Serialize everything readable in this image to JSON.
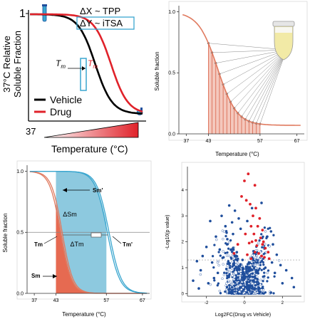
{
  "chart_data": [
    {
      "type": "line",
      "id": "schematic",
      "ylabel": [
        "37°C Relative",
        "Soluble Fraction"
      ],
      "xlabel": "Temperature (°C)",
      "x_start_tick": "37",
      "y_top_tick": "1",
      "annotation_dx": "ΔX ~ TPP",
      "annotation_dy": "ΔY ~ iTSA",
      "tm_label": "T",
      "tm_sub": "m",
      "series": [
        {
          "name": "Vehicle",
          "color": "#000000",
          "tm": 0.58
        },
        {
          "name": "Drug",
          "color": "#e0222a",
          "tm": 0.72
        }
      ]
    },
    {
      "type": "line",
      "id": "tpp",
      "ylabel": "Soluble fraction",
      "xlabel": "Temperature (°C)",
      "xticks": [
        "37",
        "43",
        "57",
        "67"
      ],
      "xtick_values": [
        37,
        43,
        57,
        67
      ],
      "yticks": [
        "0.0",
        "0.5",
        "1.0"
      ],
      "ytick_values": [
        0,
        0.5,
        1.0
      ],
      "xlim": [
        35,
        69
      ],
      "ylim": [
        0,
        1.05
      ],
      "curve": {
        "tm": 45.5,
        "slope": 1.3,
        "floor": 0.07,
        "color": "#e07a5f"
      },
      "sample_temperatures": [
        43,
        44,
        45,
        46,
        47,
        48,
        49,
        50,
        51,
        52,
        53,
        54,
        55,
        56,
        57
      ],
      "shade_range": [
        43,
        57
      ]
    },
    {
      "type": "line",
      "id": "melt-shift",
      "ylabel": "Soluble fraction",
      "xlabel": "Temperature (°C)",
      "xticks": [
        "37",
        "43",
        "57",
        "67"
      ],
      "xtick_values": [
        37,
        43,
        57,
        67
      ],
      "yticks": [
        "0.0",
        "0.5",
        "1.0"
      ],
      "ytick_values": [
        0,
        0.5,
        1.0
      ],
      "xlim": [
        35,
        69
      ],
      "ylim": [
        0,
        1.05
      ],
      "shade_range": [
        43,
        57
      ],
      "curves": [
        {
          "name": "Sm",
          "tm": 44.5,
          "slope": 1.5,
          "color": "#e07a5f"
        },
        {
          "name": "Sm'",
          "tm": 57.5,
          "slope": 1.7,
          "color": "#3aa6cf"
        }
      ],
      "labels": {
        "sm": "Sm",
        "sm_prime": "Sm'",
        "delta_sm": "ΔSm",
        "delta_tm": "ΔTm",
        "tm": "Tm",
        "tm_prime": "Tm'"
      }
    },
    {
      "type": "scatter",
      "id": "volcano",
      "xlabel": "Log2FC(Drug vs Vehicle)",
      "ylabel": "-Log10(p value)",
      "xticks": [
        "-2",
        "0",
        "2"
      ],
      "xtick_values": [
        -2,
        0,
        2
      ],
      "yticks": [
        "0",
        "1",
        "2",
        "3",
        "4"
      ],
      "ytick_values": [
        0,
        1,
        2,
        3,
        4
      ],
      "xlim": [
        -3.0,
        3.0
      ],
      "ylim": [
        -0.1,
        4.9
      ],
      "threshold_y": 1.3,
      "colors": {
        "ns": "#1f4e9c",
        "sig": "#e0222a"
      },
      "significant_points": [
        [
          0.2,
          4.62
        ],
        [
          0.0,
          4.35
        ],
        [
          0.55,
          4.18
        ],
        [
          -0.15,
          3.75
        ],
        [
          0.1,
          3.6
        ],
        [
          0.3,
          3.45
        ],
        [
          0.6,
          3.3
        ],
        [
          0.45,
          3.0
        ],
        [
          0.8,
          2.9
        ],
        [
          0.7,
          2.6
        ],
        [
          0.95,
          2.45
        ],
        [
          0.35,
          2.6
        ],
        [
          0.5,
          2.3
        ],
        [
          0.85,
          2.15
        ],
        [
          1.0,
          2.0
        ],
        [
          0.4,
          2.0
        ],
        [
          0.65,
          1.85
        ],
        [
          1.1,
          1.75
        ],
        [
          0.75,
          1.55
        ],
        [
          0.55,
          1.6
        ],
        [
          0.25,
          1.95
        ],
        [
          -0.35,
          1.9
        ],
        [
          1.25,
          1.6
        ],
        [
          0.9,
          1.45
        ],
        [
          0.15,
          1.5
        ],
        [
          -0.55,
          1.55
        ],
        [
          1.05,
          1.4
        ],
        [
          0.35,
          1.35
        ],
        [
          0.95,
          1.9
        ],
        [
          0.05,
          2.3
        ],
        [
          1.3,
          1.35
        ],
        [
          0.6,
          2.05
        ]
      ],
      "ns_points": [
        [
          -1.2,
          3.0
        ],
        [
          -1.0,
          2.6
        ],
        [
          -1.8,
          2.8
        ],
        [
          -2.5,
          1.25
        ],
        [
          -1.5,
          2.2
        ],
        [
          -0.8,
          3.4
        ],
        [
          -0.5,
          3.2
        ],
        [
          0.9,
          3.5
        ],
        [
          -0.3,
          2.9
        ],
        [
          0.4,
          3.3
        ],
        [
          -0.9,
          2.1
        ],
        [
          1.4,
          2.4
        ],
        [
          -1.3,
          1.7
        ],
        [
          1.7,
          1.5
        ],
        [
          -2.0,
          1.8
        ],
        [
          -2.3,
          0.9
        ],
        [
          2.2,
          0.9
        ],
        [
          -1.7,
          1.2
        ],
        [
          1.9,
          1.1
        ],
        [
          -0.2,
          2.5
        ],
        [
          0.15,
          2.8
        ],
        [
          -0.6,
          2.3
        ],
        [
          1.2,
          2.2
        ],
        [
          -1.1,
          1.4
        ],
        [
          2.5,
          0.6
        ],
        [
          -2.7,
          0.5
        ],
        [
          -1.6,
          0.6
        ],
        [
          1.6,
          0.8
        ],
        [
          -0.7,
          1.7
        ],
        [
          1.5,
          1.9
        ],
        [
          -0.4,
          1.6
        ],
        [
          0.7,
          1.2
        ],
        [
          -0.1,
          1.3
        ],
        [
          -1.9,
          0.4
        ],
        [
          2.0,
          0.4
        ],
        [
          1.1,
          1.0
        ],
        [
          -0.95,
          0.95
        ],
        [
          0.3,
          0.9
        ],
        [
          -0.3,
          1.05
        ],
        [
          -1.4,
          0.8
        ],
        [
          2.6,
          0.25
        ],
        [
          -2.4,
          0.2
        ],
        [
          -2.2,
          1.45
        ],
        [
          -0.65,
          2.75
        ],
        [
          1.45,
          1.2
        ]
      ]
    }
  ]
}
